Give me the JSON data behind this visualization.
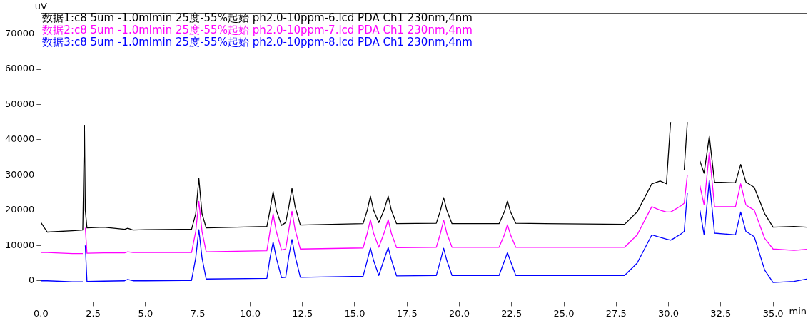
{
  "chart_data": {
    "type": "line",
    "xlabel": "min",
    "ylabel": "uV",
    "x": [
      0,
      0.3,
      1.5,
      2.0,
      2.08,
      2.12,
      2.2,
      3.0,
      4.0,
      4.15,
      4.4,
      5.0,
      7.2,
      7.4,
      7.55,
      7.7,
      7.9,
      10.8,
      10.95,
      11.1,
      11.25,
      11.5,
      11.7,
      11.85,
      12.0,
      12.15,
      12.4,
      15.4,
      15.6,
      15.75,
      15.9,
      16.15,
      16.4,
      16.6,
      16.75,
      17.0,
      18.9,
      19.1,
      19.25,
      19.4,
      19.65,
      21.9,
      22.15,
      22.3,
      22.45,
      22.7,
      27.9,
      28.5,
      29.2,
      29.6,
      29.9,
      30.1,
      30.25,
      30.6,
      30.75,
      30.9,
      31.05,
      31.3,
      31.5,
      31.7,
      31.95,
      32.2,
      33.2,
      33.45,
      33.7,
      34.1,
      34.6,
      35.0,
      36.0,
      36.6
    ],
    "series": [
      {
        "name": "数据1:c8 5um -1.0mlmin 25度-55%起始 ph2.0-10ppm-6.lcd PDA Ch1 230nm,4nm",
        "color": "#000000",
        "values": [
          16500,
          13800,
          14200,
          14400,
          44000,
          20000,
          15000,
          15200,
          14600,
          14900,
          14400,
          14500,
          14600,
          19000,
          29000,
          19000,
          15000,
          15400,
          20000,
          25300,
          20000,
          15700,
          16500,
          21000,
          26200,
          21000,
          15800,
          16200,
          20000,
          24000,
          20000,
          16500,
          20000,
          24000,
          20000,
          16200,
          16300,
          20000,
          23600,
          20000,
          16200,
          16200,
          19500,
          22600,
          19500,
          16300,
          16000,
          19500,
          27500,
          28300,
          27500,
          45000,
          null,
          null,
          31500,
          45000,
          null,
          null,
          34000,
          30500,
          41000,
          28000,
          27800,
          33000,
          28000,
          26500,
          19000,
          15200,
          15400,
          15200
        ]
      },
      {
        "name": "数据2:c8 5um -1.0mlmin 25度-55%起始 ph2.0-10ppm-7.lcd PDA Ch1 230nm,4nm",
        "color": "#ff00ff",
        "values": [
          8000,
          8000,
          7700,
          7700,
          null,
          15000,
          7800,
          7900,
          7900,
          8200,
          8000,
          8000,
          8000,
          14000,
          22500,
          14000,
          8200,
          8500,
          14000,
          19000,
          14000,
          8700,
          9000,
          14500,
          19700,
          14500,
          9000,
          9300,
          13500,
          17300,
          13500,
          9500,
          13500,
          17300,
          13500,
          9400,
          9500,
          13500,
          17200,
          13500,
          9500,
          9500,
          13000,
          15900,
          13000,
          9500,
          9500,
          13000,
          21000,
          20000,
          19500,
          19500,
          20000,
          21300,
          22000,
          30000,
          null,
          null,
          27000,
          21500,
          36500,
          21000,
          21000,
          27500,
          21500,
          20000,
          12000,
          9000,
          8600,
          8900
        ]
      },
      {
        "name": "数据3:c8 5um -1.0mlmin 25度-55%起始 ph2.0-10ppm-8.lcd PDA Ch1 230nm,4nm",
        "color": "#0000ff",
        "values": [
          0,
          0,
          -300,
          -300,
          null,
          10000,
          -200,
          -100,
          0,
          400,
          0,
          0,
          100,
          6500,
          14500,
          6500,
          500,
          700,
          6500,
          11000,
          6500,
          900,
          1000,
          7000,
          11700,
          7000,
          1000,
          1300,
          5800,
          9300,
          5800,
          1500,
          6000,
          9400,
          6000,
          1400,
          1500,
          5800,
          9200,
          5800,
          1500,
          1500,
          5500,
          8000,
          5500,
          1500,
          1500,
          5000,
          13000,
          12300,
          11800,
          11500,
          12000,
          13300,
          14000,
          25000,
          null,
          null,
          20000,
          13000,
          28500,
          13500,
          13000,
          19500,
          14000,
          12500,
          3000,
          -500,
          -200,
          500
        ]
      }
    ],
    "xlim": [
      0,
      36.6
    ],
    "xticks": [
      {
        "value": 0,
        "label": "0.0"
      },
      2.5,
      {
        "value": 5,
        "label": "5.0"
      },
      7.5,
      {
        "value": 10,
        "label": "10.0"
      },
      12.5,
      {
        "value": 15,
        "label": "15.0"
      },
      17.5,
      {
        "value": 20,
        "label": "20.0"
      },
      22.5,
      {
        "value": 25,
        "label": "25.0"
      },
      27.5,
      {
        "value": 30,
        "label": "30.0"
      },
      32.5,
      {
        "value": 35,
        "label": "35.0"
      }
    ],
    "ylim": [
      -6000,
      76000
    ],
    "yticks": [
      0,
      10000,
      20000,
      30000,
      40000,
      50000,
      60000,
      70000
    ],
    "grid": false,
    "legend": "top left",
    "marker": "none",
    "line_style": "solid"
  }
}
